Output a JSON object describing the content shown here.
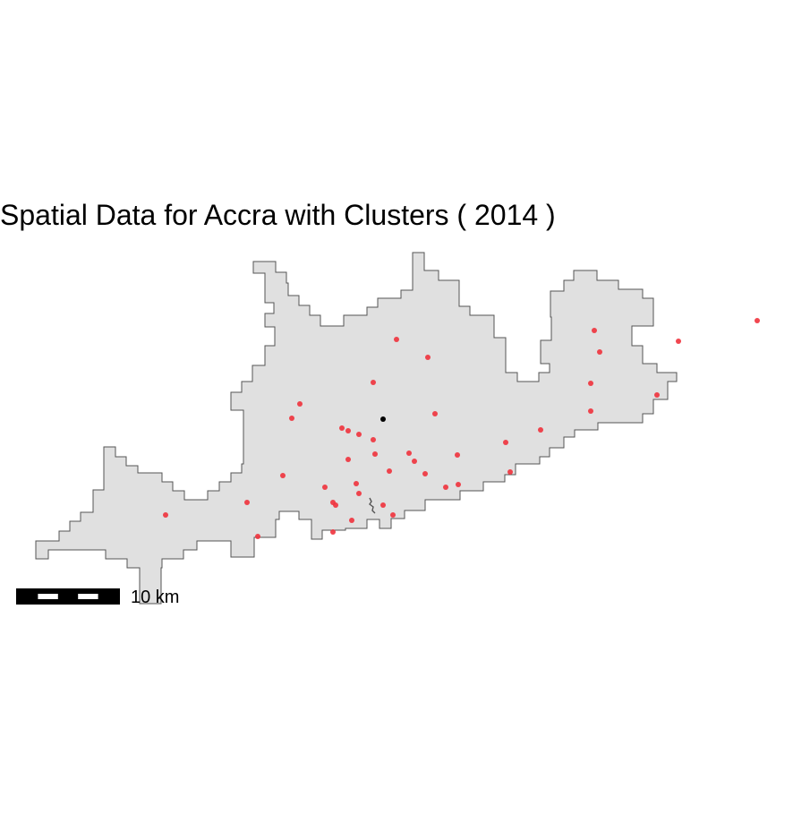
{
  "map": {
    "title": "Spatial Data for Accra with Clusters ( 2014 )",
    "scale_bar_label": "10 km",
    "scale_bar_segments": 5,
    "region_fill": "#e0e0e0",
    "region_stroke": "#555555",
    "cluster_color": "#f0323c",
    "center_color": "#000000"
  },
  "legend_items": []
}
